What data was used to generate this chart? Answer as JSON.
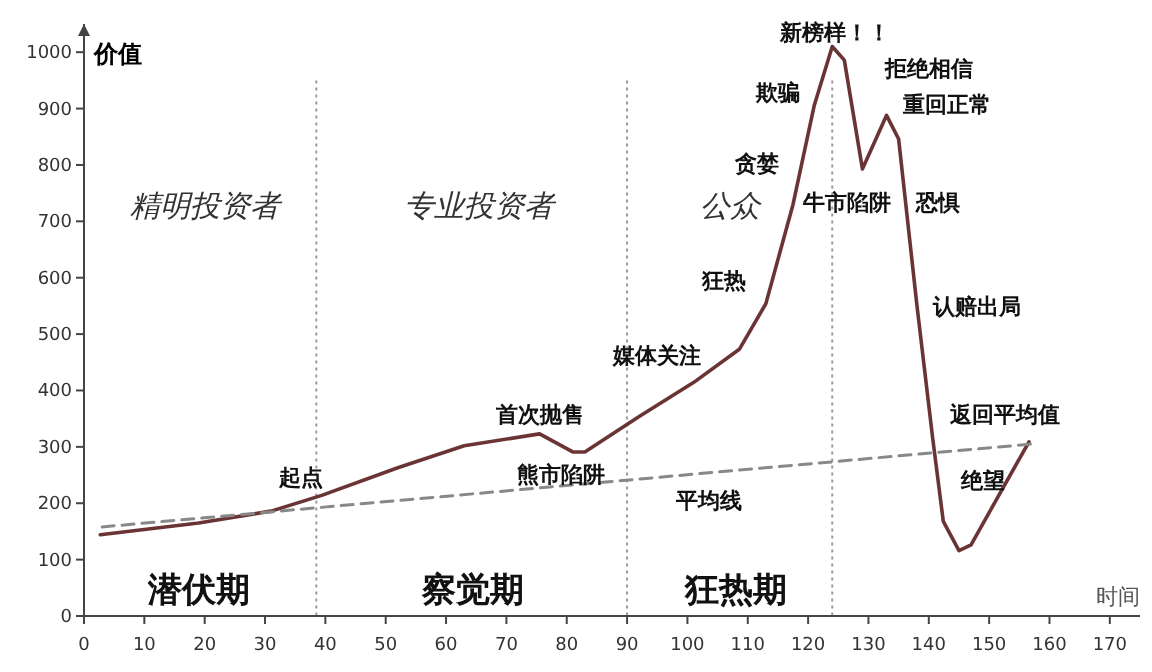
{
  "chart_data": {
    "type": "line",
    "ylabel": "价值",
    "xlabel": "时间",
    "xlim": [
      0,
      175
    ],
    "ylim": [
      0,
      1050
    ],
    "xticks": [
      0,
      10,
      20,
      30,
      40,
      50,
      60,
      70,
      80,
      90,
      100,
      110,
      120,
      130,
      140,
      150,
      160,
      170
    ],
    "yticks": [
      0,
      100,
      200,
      300,
      400,
      500,
      600,
      700,
      800,
      900,
      1000
    ],
    "grid": false,
    "marker": "none",
    "series": [
      {
        "color": "#6b3434",
        "line_style": "solid",
        "x": [
          2.7,
          19,
          31,
          39.4,
          52,
          63,
          75.5,
          81,
          83,
          92,
          101,
          108.6,
          113,
          117.5,
          121,
          124,
          126,
          129,
          133,
          135,
          138,
          140.6,
          142.4,
          145,
          147,
          151.6,
          156.6
        ],
        "values": [
          144,
          165,
          186,
          214,
          263,
          302,
          323,
          291,
          291,
          354,
          414,
          473,
          554,
          730,
          905,
          1010,
          986,
          793,
          888,
          846,
          554,
          319,
          168,
          116,
          126,
          214,
          309
        ]
      },
      {
        "color": "#888888",
        "line_style": "dashed",
        "x": [
          3,
          157
        ],
        "values": [
          158,
          305
        ]
      }
    ],
    "ref_lines": [
      {
        "axis": "x",
        "value": 38.5,
        "line_style": "dotted",
        "color": "#999999"
      },
      {
        "axis": "x",
        "value": 90,
        "line_style": "dotted",
        "color": "#999999"
      },
      {
        "axis": "x",
        "value": 124,
        "line_style": "dotted",
        "color": "#999999"
      }
    ],
    "annotations": [
      "精明投资者",
      "专业投资者",
      "公众",
      "潜伏期",
      "察觉期",
      "狂热期",
      "起点",
      "首次抛售",
      "熊市陷阱",
      "媒体关注",
      "平均线",
      "狂热",
      "贪婪",
      "欺骗",
      "新榜样！！",
      "拒绝相信",
      "重回正常",
      "牛市陷阱",
      "恐惧",
      "认赔出局",
      "返回平均值",
      "绝望"
    ]
  }
}
